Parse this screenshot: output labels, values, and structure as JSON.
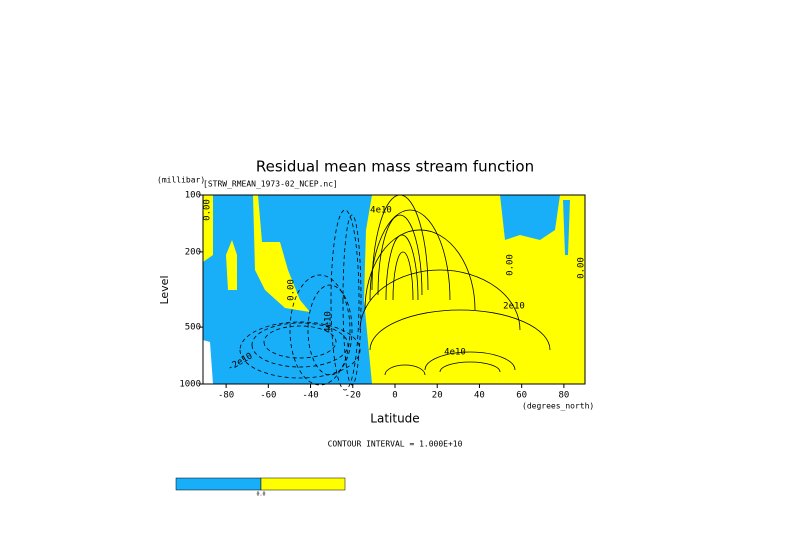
{
  "chart_data": {
    "type": "contour",
    "title": "Residual mean mass stream function",
    "subtitle": "[STRW_RMEAN_1973-02_NCEP.nc]",
    "y_unit": "(millibar)",
    "ylabel": "Level",
    "xlabel": "Latitude",
    "x_unit": "(degrees_north)",
    "footnote": "CONTOUR INTERVAL = 1.000E+10",
    "xlim": [
      -90,
      90
    ],
    "xticks": [
      -80,
      -60,
      -40,
      -20,
      0,
      20,
      40,
      60,
      80
    ],
    "ylim": [
      1000,
      100
    ],
    "yticks": [
      100,
      200,
      500,
      1000
    ],
    "log_y": true,
    "negative_color": "#18aef8",
    "positive_color": "#ffff00",
    "annotations": [
      "0.00",
      "0.00",
      "4e10",
      "-2e10",
      "4e10",
      "2e10",
      "0.00",
      "0.00",
      "4e10"
    ],
    "colorbar_labels": [
      "0.0"
    ]
  }
}
